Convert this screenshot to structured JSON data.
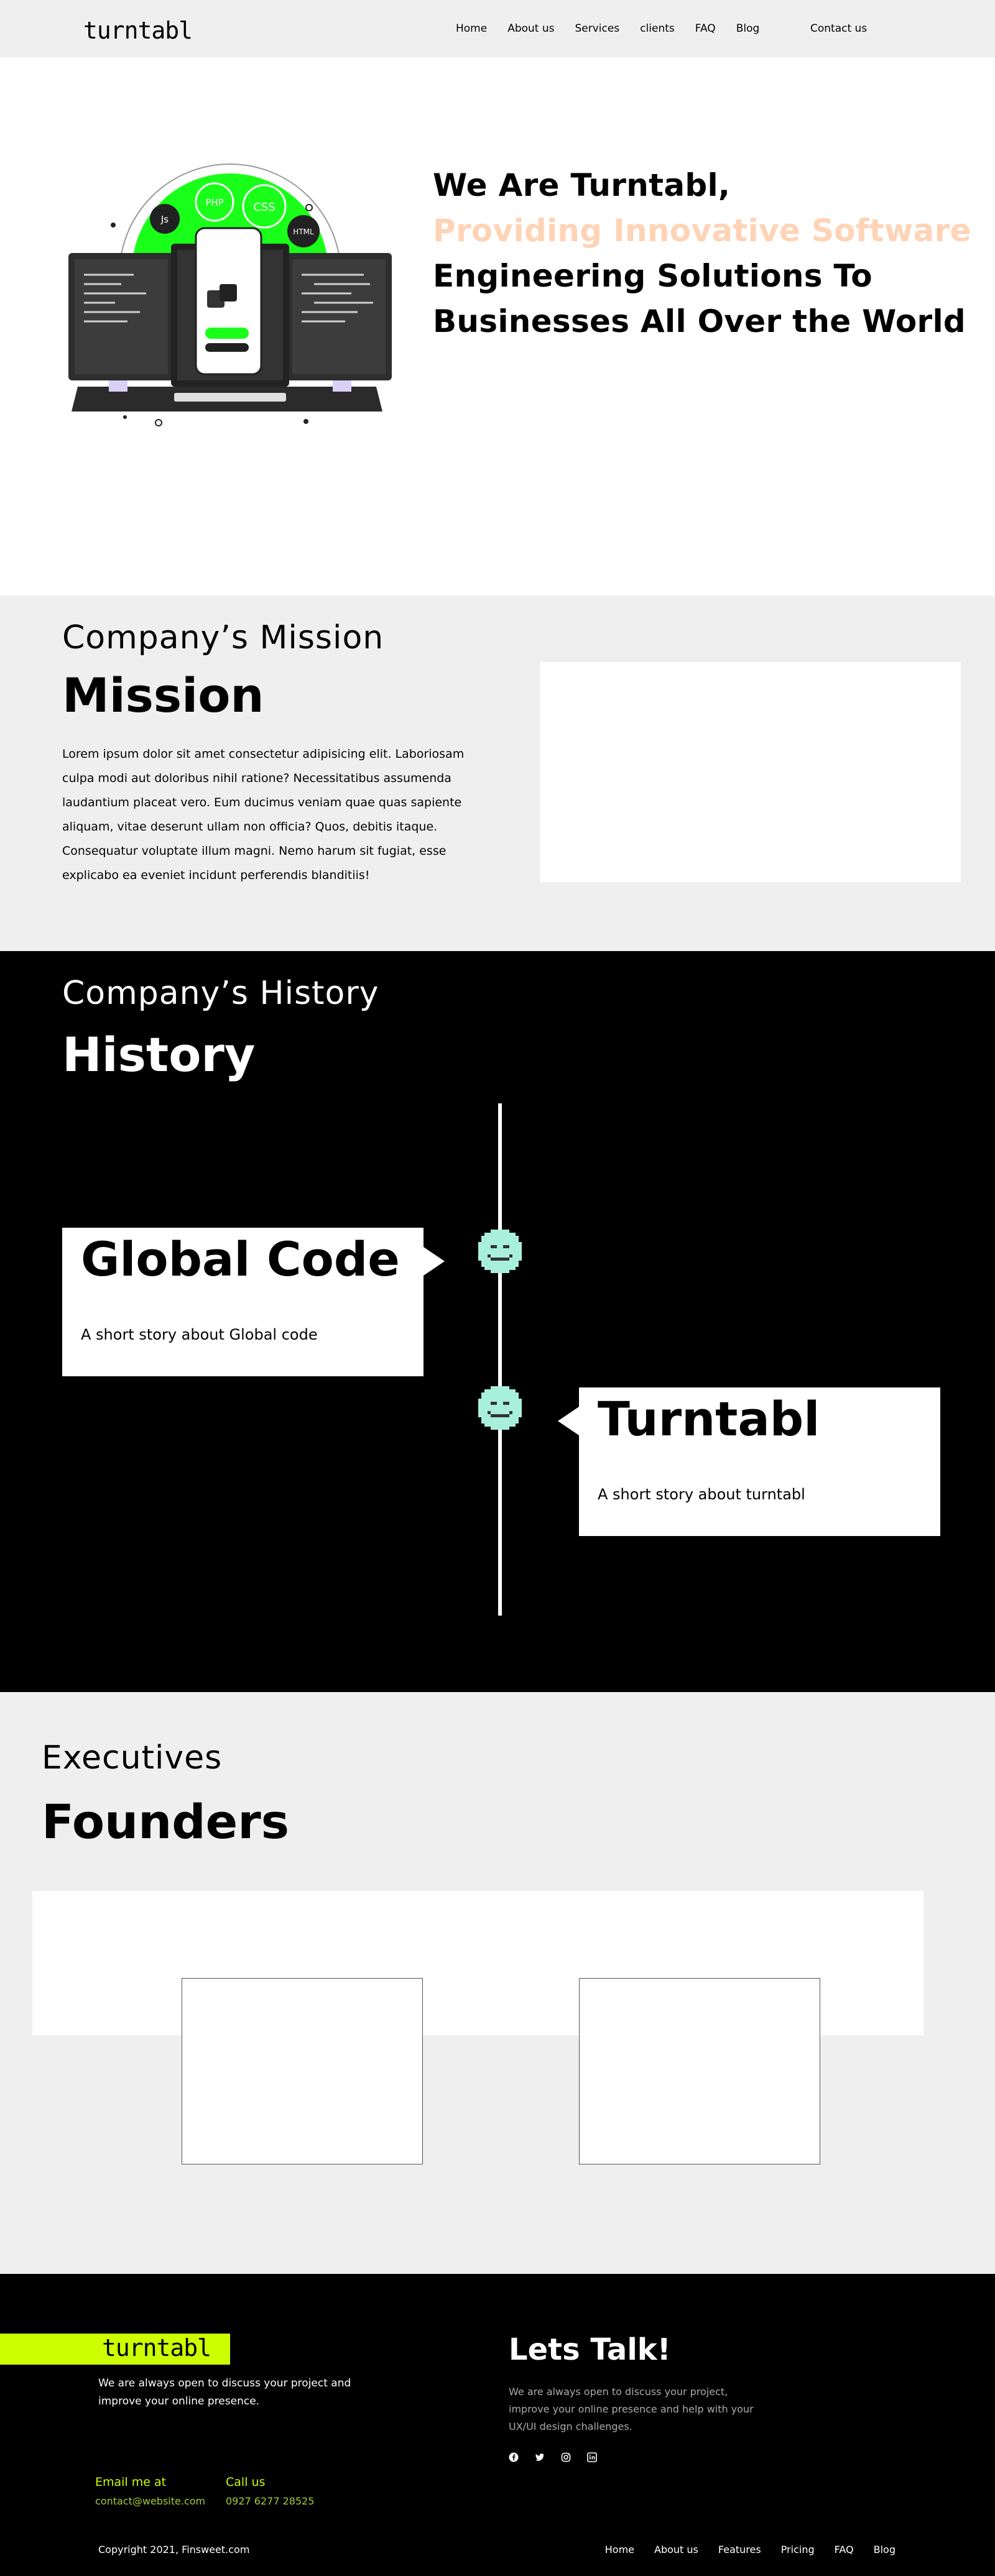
{
  "nav": {
    "logo": "turntabl",
    "links": [
      "Home",
      "About us",
      "Services",
      "clients",
      "FAQ",
      "Blog"
    ],
    "contact": "Contact us"
  },
  "hero": {
    "line1": "We Are Turntabl,",
    "line2": "Providing Innovative Software",
    "line3": "Engineering Solutions To",
    "line4": "Businesses All Over the World",
    "accent_color": "#ffd3b6",
    "art_labels": {
      "js": "Js",
      "php": "PHP",
      "css": "CSS",
      "html": "HTML"
    },
    "art_accent": "#1aff1a"
  },
  "mission": {
    "eyebrow": "Company’s Mission",
    "title": "Mission",
    "text": "Lorem ipsum dolor sit amet consectetur adipisicing elit. Laboriosam culpa modi aut doloribus nihil ratione? Necessitatibus assumenda laudantium placeat vero. Eum ducimus veniam quae quas sapiente aliquam, vitae deserunt ullam non officia? Quos, debitis itaque. Consequatur voluptate illum magni. Nemo harum sit fugiat, esse explicabo ea eveniet incidunt perferendis blanditiis!"
  },
  "history": {
    "eyebrow": "Company’s History",
    "title": "History",
    "stories": [
      {
        "title": "Global Code",
        "text": "A short story about Global code"
      },
      {
        "title": "Turntabl",
        "text": "A short story about turntabl"
      }
    ],
    "smiley_color": "#a8f0dc"
  },
  "founders": {
    "eyebrow": "Executives",
    "title": "Founders"
  },
  "footer": {
    "logo": "turntabl",
    "logo_bg": "#ccff00",
    "desc": "We are always open to discuss your project and improve your online presence.",
    "email_label": "Email me at",
    "email": "contact@website.com",
    "call_label": "Call us",
    "phone": "0927 6277 28525",
    "talk_title": "Lets Talk!",
    "talk_desc": "We are always open to discuss your project, improve your online presence and help with your UX/UI design challenges.",
    "socials": [
      "facebook-icon",
      "twitter-icon",
      "instagram-icon",
      "linkedin-icon"
    ],
    "copyright": "Copyright 2021, Finsweet.com",
    "links": [
      "Home",
      "About us",
      "Features",
      "Pricing",
      "FAQ",
      "Blog"
    ]
  }
}
